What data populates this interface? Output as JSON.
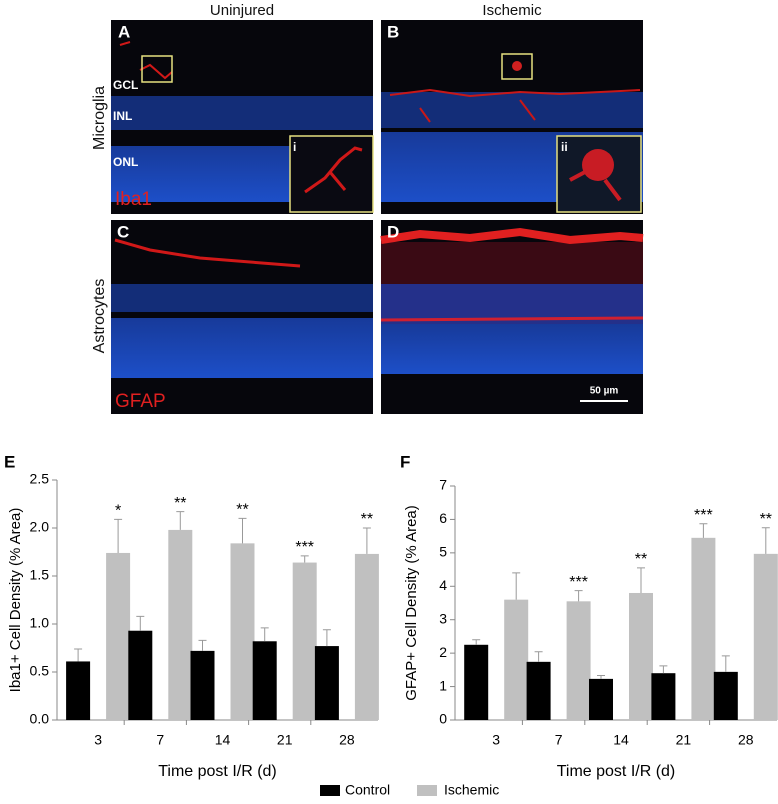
{
  "figure": {
    "column_titles": [
      "Uninjured",
      "Ischemic"
    ],
    "row_titles": [
      "Microglia",
      "Astrocytes"
    ],
    "stains": [
      "Iba1",
      "GFAP"
    ],
    "panel_letters": [
      "A",
      "B",
      "C",
      "D",
      "E",
      "F"
    ],
    "layers": [
      "GCL",
      "INL",
      "ONL"
    ],
    "insets": [
      "i",
      "ii"
    ],
    "scale_bar": "50 µm"
  },
  "chart_data": [
    {
      "type": "bar",
      "xlabel": "Time post I/R (d)",
      "ylabel": "Iba1+ Cell Density (% Area)",
      "categories": [
        "3",
        "7",
        "14",
        "21",
        "28"
      ],
      "series": [
        {
          "name": "Control",
          "color": "#000000",
          "values": [
            0.61,
            0.93,
            0.72,
            0.82,
            0.77
          ],
          "errors": [
            0.13,
            0.15,
            0.11,
            0.14,
            0.17
          ]
        },
        {
          "name": "Ischemic",
          "color": "#c0c0c0",
          "values": [
            1.74,
            1.98,
            1.84,
            1.64,
            1.73
          ],
          "errors": [
            0.35,
            0.19,
            0.26,
            0.07,
            0.27
          ]
        }
      ],
      "annotations": [
        "*",
        "**",
        "**",
        "***",
        "**"
      ],
      "ylim": [
        0,
        2.5
      ],
      "yticks": [
        {
          "value": 0,
          "label": "0.0"
        },
        0.5,
        {
          "value": 1,
          "label": "1.0"
        },
        1.5,
        {
          "value": 2,
          "label": "2.0"
        },
        2.5
      ]
    },
    {
      "type": "bar",
      "xlabel": "Time post I/R (d)",
      "ylabel": "GFAP+ Cell Density (% Area)",
      "categories": [
        "3",
        "7",
        "14",
        "21",
        "28"
      ],
      "series": [
        {
          "color": "#000000",
          "values": [
            2.25,
            1.74,
            1.23,
            1.4,
            1.44
          ],
          "errors": [
            0.15,
            0.3,
            0.1,
            0.22,
            0.48
          ]
        },
        {
          "color": "#c0c0c0",
          "values": [
            3.6,
            3.55,
            3.8,
            5.45,
            4.97
          ],
          "errors": [
            0.8,
            0.32,
            0.75,
            0.42,
            0.78
          ]
        }
      ],
      "annotations": [
        null,
        "***",
        "**",
        "***",
        "**"
      ],
      "ylim": [
        0,
        7
      ],
      "yticks": [
        0,
        1,
        2,
        3,
        4,
        5,
        6,
        7
      ]
    }
  ]
}
